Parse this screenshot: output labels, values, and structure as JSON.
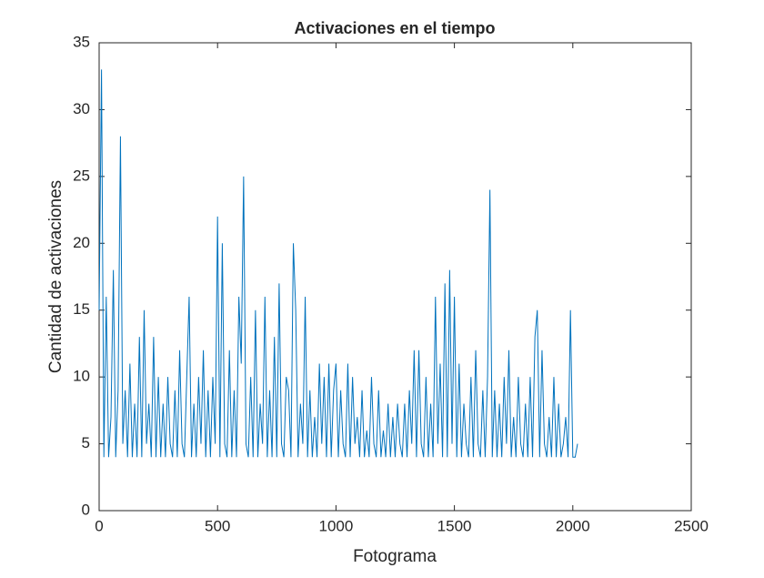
{
  "chart_data": {
    "type": "line",
    "title": "Activaciones en el tiempo",
    "xlabel": "Fotograma",
    "ylabel": "Cantidad de activaciones",
    "xlim": [
      0,
      2500
    ],
    "xticks": [
      0,
      500,
      1000,
      1500,
      2000,
      2500
    ],
    "ylim": [
      0,
      35
    ],
    "yticks": [
      0,
      5,
      10,
      15,
      20,
      25,
      30,
      35
    ],
    "series": [
      {
        "color": "#0072bd",
        "x": [
          0,
          10,
          20,
          30,
          40,
          50,
          60,
          70,
          80,
          90,
          100,
          110,
          120,
          130,
          140,
          150,
          160,
          170,
          180,
          190,
          200,
          210,
          220,
          230,
          240,
          250,
          260,
          270,
          280,
          290,
          300,
          310,
          320,
          330,
          340,
          350,
          360,
          370,
          380,
          390,
          400,
          410,
          420,
          430,
          440,
          450,
          460,
          470,
          480,
          490,
          500,
          510,
          520,
          530,
          540,
          550,
          560,
          570,
          580,
          590,
          600,
          610,
          620,
          630,
          640,
          650,
          660,
          670,
          680,
          690,
          700,
          710,
          720,
          730,
          740,
          750,
          760,
          770,
          780,
          790,
          800,
          810,
          820,
          830,
          840,
          850,
          860,
          870,
          880,
          890,
          900,
          910,
          920,
          930,
          940,
          950,
          960,
          970,
          980,
          990,
          1000,
          1010,
          1020,
          1030,
          1040,
          1050,
          1060,
          1070,
          1080,
          1090,
          1100,
          1110,
          1120,
          1130,
          1140,
          1150,
          1160,
          1170,
          1180,
          1190,
          1200,
          1210,
          1220,
          1230,
          1240,
          1250,
          1260,
          1270,
          1280,
          1290,
          1300,
          1310,
          1320,
          1330,
          1340,
          1350,
          1360,
          1370,
          1380,
          1390,
          1400,
          1410,
          1420,
          1430,
          1440,
          1450,
          1460,
          1470,
          1480,
          1490,
          1500,
          1510,
          1520,
          1530,
          1540,
          1550,
          1560,
          1570,
          1580,
          1590,
          1600,
          1610,
          1620,
          1630,
          1640,
          1650,
          1660,
          1670,
          1680,
          1690,
          1700,
          1710,
          1720,
          1730,
          1740,
          1750,
          1760,
          1770,
          1780,
          1790,
          1800,
          1810,
          1820,
          1830,
          1840,
          1850,
          1860,
          1870,
          1880,
          1890,
          1900,
          1910,
          1920,
          1930,
          1940,
          1950,
          1960,
          1970,
          1980,
          1990,
          2000,
          2010,
          2020
        ],
        "values": [
          15,
          33,
          4,
          16,
          4,
          7,
          18,
          4,
          9,
          28,
          5,
          9,
          4,
          11,
          4,
          8,
          4,
          13,
          4,
          15,
          5,
          8,
          4,
          13,
          4,
          10,
          4,
          8,
          4,
          10,
          5,
          4,
          9,
          4,
          12,
          5,
          4,
          10,
          16,
          4,
          8,
          4,
          10,
          5,
          12,
          4,
          9,
          4,
          10,
          5,
          22,
          4,
          20,
          5,
          4,
          12,
          4,
          9,
          4,
          16,
          11,
          25,
          5,
          4,
          10,
          4,
          15,
          4,
          8,
          5,
          16,
          4,
          9,
          4,
          13,
          4,
          17,
          5,
          4,
          10,
          9,
          4,
          20,
          15,
          4,
          8,
          5,
          16,
          4,
          9,
          4,
          7,
          4,
          11,
          5,
          10,
          4,
          11,
          4,
          9,
          11,
          4,
          9,
          5,
          4,
          11,
          4,
          10,
          5,
          7,
          4,
          9,
          4,
          6,
          4,
          10,
          5,
          4,
          9,
          4,
          6,
          4,
          8,
          4,
          7,
          4,
          8,
          5,
          4,
          8,
          4,
          9,
          5,
          12,
          4,
          12,
          5,
          4,
          10,
          4,
          8,
          4,
          16,
          5,
          11,
          4,
          17,
          4,
          18,
          5,
          16,
          4,
          11,
          4,
          8,
          5,
          4,
          10,
          4,
          12,
          5,
          4,
          9,
          4,
          10,
          24,
          4,
          9,
          4,
          8,
          4,
          10,
          5,
          12,
          4,
          7,
          4,
          10,
          5,
          4,
          8,
          4,
          10,
          4,
          13,
          15,
          4,
          12,
          5,
          4,
          7,
          4,
          10,
          4,
          8,
          4,
          5,
          7,
          4,
          15,
          4,
          4,
          5
        ]
      }
    ]
  }
}
